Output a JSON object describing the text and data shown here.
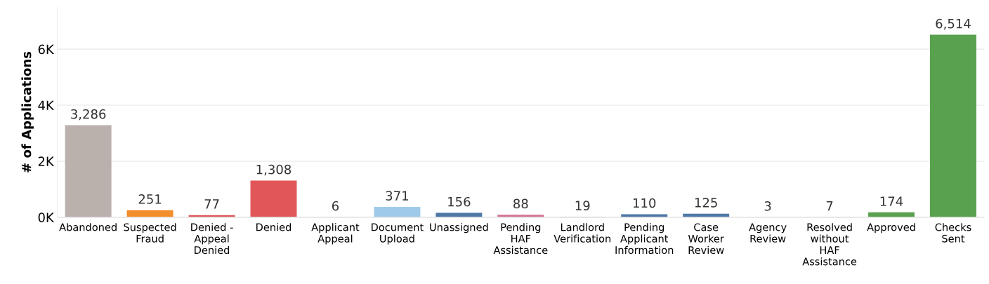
{
  "chart_data": {
    "type": "bar",
    "ylabel": "# of Applications",
    "categories": [
      "Abandoned",
      "Suspected Fraud",
      "Denied - Appeal Denied",
      "Denied",
      "Applicant Appeal",
      "Document Upload",
      "Unassigned",
      "Pending HAF Assistance",
      "Landlord Verification",
      "Pending Applicant Information",
      "Case Worker Review",
      "Agency Review",
      "Resolved without HAF Assistance",
      "Approved",
      "Checks Sent"
    ],
    "values": [
      3286,
      251,
      77,
      1308,
      6,
      371,
      156,
      88,
      19,
      110,
      125,
      3,
      7,
      174,
      6514
    ],
    "colors": [
      "#bab0ac",
      "#f28e2b",
      "#e15759",
      "#e15759",
      "#e15759",
      "#a0cbe8",
      "#4e79a7",
      "#d37295",
      "#4e79a7",
      "#4e79a7",
      "#4e79a7",
      "#4e79a7",
      "#59a14f",
      "#59a14f",
      "#59a14f"
    ],
    "ylim": [
      0,
      7500
    ],
    "yticks": [
      {
        "value": 0,
        "label": "0K"
      },
      {
        "value": 2000,
        "label": "2K"
      },
      {
        "value": 4000,
        "label": "4K"
      },
      {
        "value": 6000,
        "label": "6K"
      }
    ],
    "value_labels": [
      "3,286",
      "251",
      "77",
      "1,308",
      "6",
      "371",
      "156",
      "88",
      "19",
      "110",
      "125",
      "3",
      "7",
      "174",
      "6,514"
    ],
    "grid": "y"
  }
}
